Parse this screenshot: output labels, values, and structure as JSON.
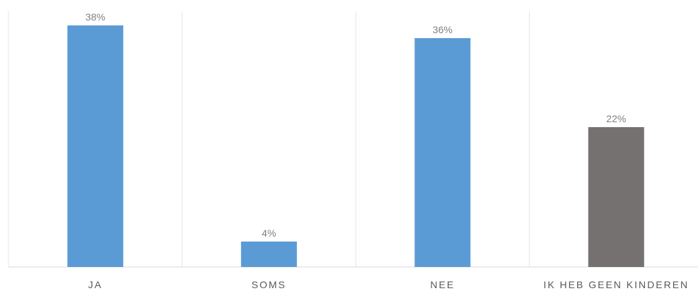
{
  "chart_data": {
    "type": "bar",
    "categories": [
      "JA",
      "SOMS",
      "NEE",
      "IK HEB GEEN KINDEREN"
    ],
    "values": [
      38,
      4,
      36,
      22
    ],
    "value_labels": [
      "38%",
      "4%",
      "36%",
      "22%"
    ],
    "unit": "%",
    "ylim": [
      0,
      40
    ],
    "grid": "vertical separators between categories",
    "title": "",
    "xlabel": "",
    "ylabel": "",
    "legend": "none",
    "colors": [
      "#5b9bd5",
      "#5b9bd5",
      "#5b9bd5",
      "#767171"
    ]
  }
}
